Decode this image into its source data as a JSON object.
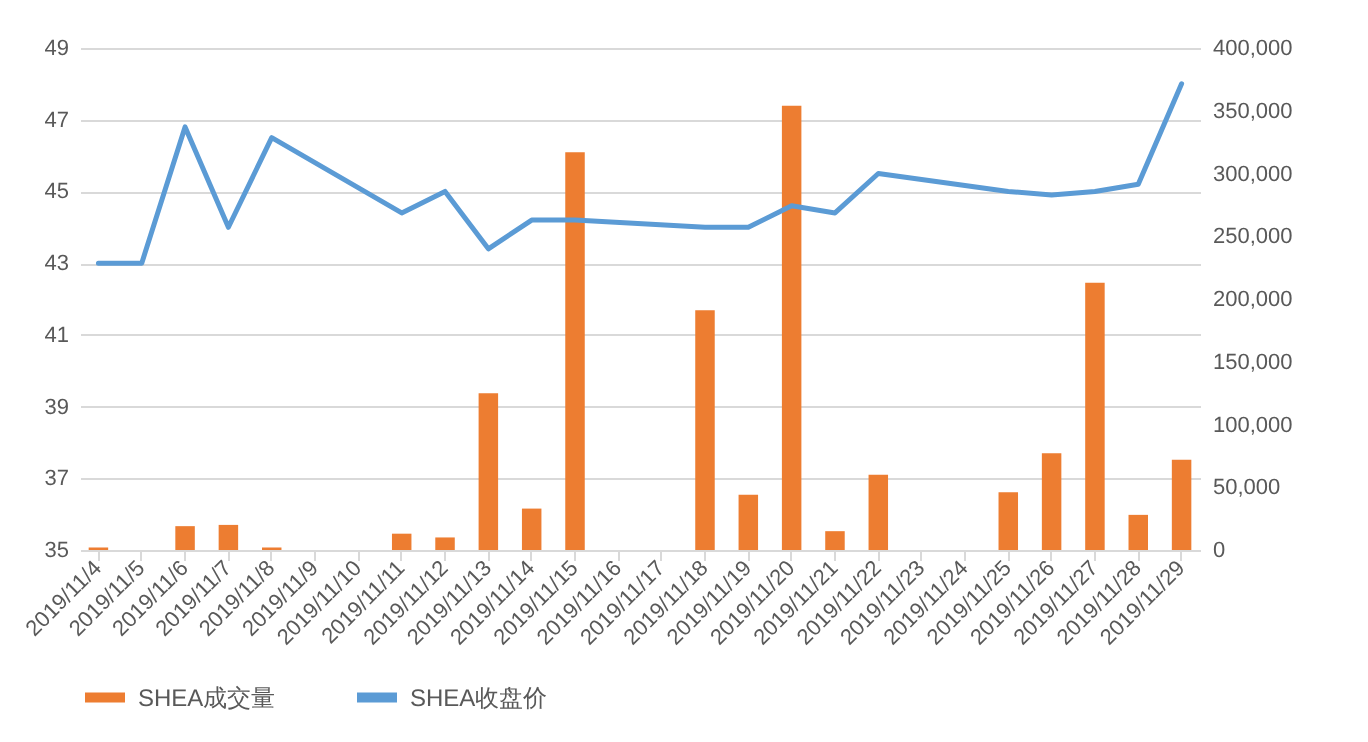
{
  "chart_data": {
    "type": "bar",
    "categories": [
      "2019/11/4",
      "2019/11/5",
      "2019/11/6",
      "2019/11/7",
      "2019/11/8",
      "2019/11/9",
      "2019/11/10",
      "2019/11/11",
      "2019/11/12",
      "2019/11/13",
      "2019/11/14",
      "2019/11/15",
      "2019/11/16",
      "2019/11/17",
      "2019/11/18",
      "2019/11/19",
      "2019/11/20",
      "2019/11/21",
      "2019/11/22",
      "2019/11/23",
      "2019/11/24",
      "2019/11/25",
      "2019/11/26",
      "2019/11/27",
      "2019/11/28",
      "2019/11/29"
    ],
    "series": [
      {
        "name": "SHEA成交量",
        "axis": "y2",
        "color": "#ed7d31",
        "values": [
          2000,
          null,
          19000,
          20000,
          2000,
          null,
          null,
          13000,
          10000,
          125000,
          33000,
          317000,
          null,
          null,
          191000,
          44000,
          354000,
          15000,
          60000,
          null,
          null,
          46000,
          77000,
          213000,
          28000,
          72000
        ]
      },
      {
        "name": "SHEA收盘价",
        "type": "line",
        "color": "#5b9bd5",
        "values": [
          43.0,
          43.0,
          46.8,
          44.0,
          46.5,
          null,
          null,
          44.4,
          45.0,
          43.4,
          44.2,
          44.2,
          null,
          null,
          44.0,
          44.0,
          44.6,
          44.4,
          45.5,
          null,
          null,
          45.0,
          44.9,
          45.0,
          45.2,
          48.0
        ]
      }
    ],
    "ylim": [
      35,
      49
    ],
    "yticks": [
      35,
      37,
      39,
      41,
      43,
      45,
      47,
      49
    ],
    "y2lim": [
      0,
      400000
    ],
    "y2ticks": [
      {
        "value": 0,
        "label": "0"
      },
      {
        "value": 50000,
        "label": "50,000"
      },
      {
        "value": 100000,
        "label": "100,000"
      },
      {
        "value": 150000,
        "label": "150,000"
      },
      {
        "value": 200000,
        "label": "200,000"
      },
      {
        "value": 250000,
        "label": "250,000"
      },
      {
        "value": 300000,
        "label": "300,000"
      },
      {
        "value": 350000,
        "label": "350,000"
      },
      {
        "value": 400000,
        "label": "400,000"
      }
    ],
    "grid": "y",
    "legend": "bottom"
  }
}
